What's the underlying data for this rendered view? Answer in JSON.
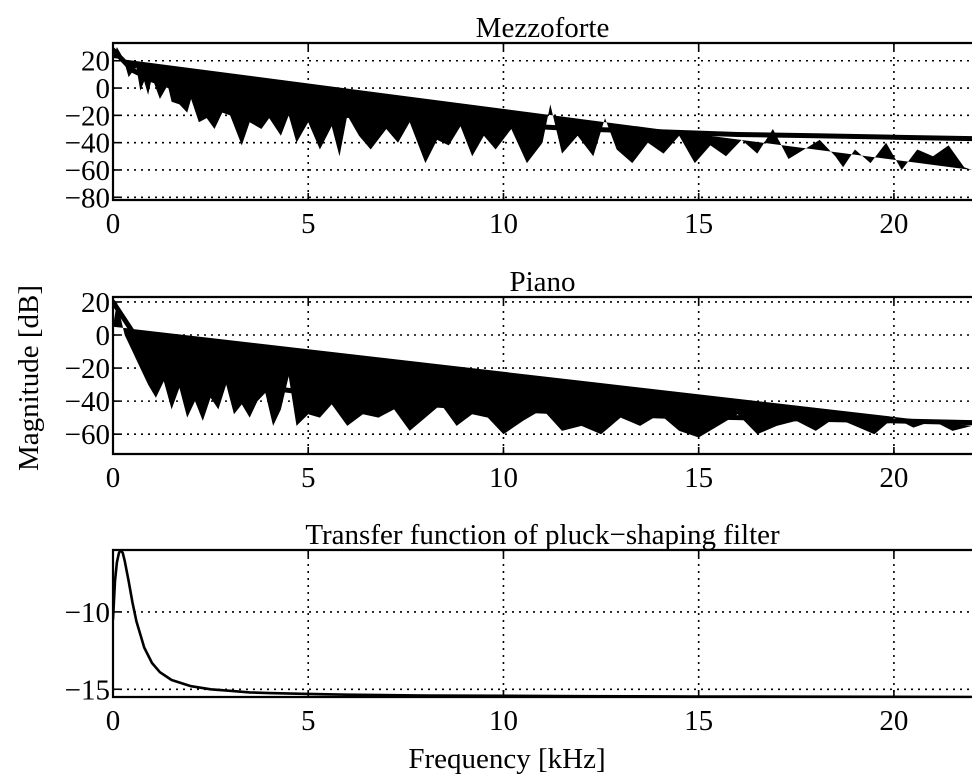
{
  "figure": {
    "ylabel": "Magnitude [dB]",
    "xlabel": "Frequency [kHz]"
  },
  "chart_data": [
    {
      "type": "line",
      "title": "Mezzoforte",
      "xlabel": "",
      "ylabel": "Magnitude [dB]",
      "xlim": [
        0,
        22
      ],
      "ylim": [
        -82,
        33
      ],
      "xticks": [
        0,
        5,
        10,
        15,
        20
      ],
      "yticks": [
        20,
        0,
        -20,
        -40,
        -60,
        -80
      ],
      "grid": true,
      "series": [
        {
          "role": "spectrum",
          "x": [
            0.0,
            0.1,
            0.2,
            0.3,
            0.4,
            0.5,
            0.6,
            0.7,
            0.8,
            0.9,
            1.0,
            1.1,
            1.2,
            1.3,
            1.4,
            1.5,
            1.7,
            1.9,
            2.0,
            2.2,
            2.4,
            2.6,
            2.8,
            3.0,
            3.3,
            3.5,
            3.8,
            4.0,
            4.3,
            4.5,
            4.7,
            5.0,
            5.3,
            5.6,
            5.8,
            6.0,
            6.3,
            6.6,
            7.0,
            7.3,
            7.6,
            8.0,
            8.3,
            8.6,
            8.9,
            9.2,
            9.5,
            9.8,
            10.2,
            10.6,
            11.0,
            11.2,
            11.5,
            11.9,
            12.3,
            12.6,
            12.9,
            13.3,
            13.7,
            14.1,
            14.5,
            14.9,
            15.3,
            15.7,
            16.1,
            16.5,
            16.9,
            17.3,
            17.7,
            18.1,
            18.5,
            18.7,
            19.0,
            19.4,
            19.8,
            20.2,
            20.6,
            21.0,
            21.4,
            21.8,
            22.0
          ],
          "y": [
            22,
            30,
            25,
            18,
            8,
            12,
            15,
            -2,
            5,
            -5,
            8,
            0,
            -8,
            -3,
            2,
            -10,
            -12,
            -18,
            -8,
            -25,
            -22,
            -30,
            -18,
            -20,
            -42,
            -25,
            -30,
            -22,
            -35,
            -20,
            -40,
            -25,
            -45,
            -28,
            -50,
            -20,
            -35,
            -45,
            -30,
            -40,
            -25,
            -55,
            -38,
            -42,
            -28,
            -50,
            -35,
            -45,
            -30,
            -55,
            -40,
            -12,
            -48,
            -35,
            -50,
            -22,
            -45,
            -55,
            -40,
            -48,
            -35,
            -55,
            -42,
            -50,
            -38,
            -48,
            -30,
            -52,
            -45,
            -38,
            -50,
            -58,
            -45,
            -55,
            -40,
            -60,
            -45,
            -50,
            -42,
            -58,
            -60
          ]
        },
        {
          "role": "envelope",
          "x": [
            0.0,
            0.5,
            1.0,
            1.5,
            2.0,
            3.0,
            4.0,
            5.0,
            6.0,
            7.0,
            8.0,
            10.0,
            12.0,
            14.0,
            16.0,
            18.0,
            20.0,
            22.0
          ],
          "y": [
            28,
            13,
            6,
            1,
            -3,
            -9,
            -14,
            -17,
            -20,
            -22,
            -24,
            -27,
            -30,
            -32,
            -34,
            -35,
            -36,
            -37
          ]
        }
      ]
    },
    {
      "type": "line",
      "title": "Piano",
      "xlabel": "",
      "ylabel": "Magnitude [dB]",
      "xlim": [
        0,
        22
      ],
      "ylim": [
        -72,
        23
      ],
      "xticks": [
        0,
        5,
        10,
        15,
        20
      ],
      "yticks": [
        20,
        0,
        -20,
        -40,
        -60
      ],
      "grid": true,
      "series": [
        {
          "role": "spectrum",
          "x": [
            0.0,
            0.1,
            0.2,
            0.3,
            0.4,
            0.5,
            0.7,
            0.9,
            1.1,
            1.3,
            1.5,
            1.7,
            1.9,
            2.1,
            2.3,
            2.5,
            2.7,
            2.9,
            3.1,
            3.3,
            3.5,
            3.7,
            3.9,
            4.1,
            4.3,
            4.5,
            4.7,
            5.0,
            5.3,
            5.6,
            6.0,
            6.4,
            6.8,
            7.2,
            7.6,
            8.0,
            8.4,
            8.8,
            9.2,
            9.6,
            10.0,
            10.5,
            11.0,
            11.5,
            12.0,
            12.5,
            13.0,
            13.5,
            14.0,
            14.5,
            15.0,
            15.5,
            16.0,
            16.5,
            17.0,
            17.5,
            18.0,
            18.5,
            19.0,
            19.5,
            20.0,
            20.5,
            21.0,
            21.5,
            22.0
          ],
          "y": [
            5,
            20,
            10,
            0,
            -5,
            -10,
            -20,
            -30,
            -38,
            -28,
            -45,
            -32,
            -50,
            -40,
            -52,
            -38,
            -45,
            -30,
            -48,
            -42,
            -50,
            -40,
            -35,
            -55,
            -45,
            -25,
            -55,
            -48,
            -50,
            -42,
            -55,
            -48,
            -50,
            -45,
            -58,
            -50,
            -42,
            -55,
            -48,
            -50,
            -60,
            -52,
            -45,
            -58,
            -55,
            -60,
            -50,
            -55,
            -48,
            -58,
            -62,
            -55,
            -48,
            -60,
            -55,
            -52,
            -58,
            -50,
            -55,
            -60,
            -50,
            -56,
            -52,
            -58,
            -55
          ]
        },
        {
          "role": "envelope",
          "x": [
            0.0,
            0.5,
            1.0,
            1.5,
            2.0,
            3.0,
            4.0,
            5.0,
            6.0,
            8.0,
            10.0,
            12.0,
            14.0,
            16.0,
            18.0,
            20.0,
            22.0
          ],
          "y": [
            20,
            2,
            -9,
            -15,
            -20,
            -27,
            -32,
            -35,
            -38,
            -42,
            -45,
            -47,
            -49,
            -50,
            -51,
            -52,
            -53
          ]
        }
      ]
    },
    {
      "type": "line",
      "title": "Transfer function of pluck−shaping filter",
      "xlabel": "Frequency [kHz]",
      "ylabel": "",
      "xlim": [
        0,
        22
      ],
      "ylim": [
        -15.5,
        -6
      ],
      "xticks": [
        0,
        5,
        10,
        15,
        20
      ],
      "yticks": [
        -10,
        -15
      ],
      "grid": true,
      "series": [
        {
          "role": "filter",
          "x": [
            0.0,
            0.05,
            0.1,
            0.15,
            0.2,
            0.25,
            0.3,
            0.4,
            0.5,
            0.6,
            0.8,
            1.0,
            1.2,
            1.5,
            2.0,
            2.5,
            3.0,
            3.5,
            4.0,
            5.0,
            6.0,
            8.0,
            10.0,
            12.0,
            15.0,
            18.0,
            20.0,
            22.0
          ],
          "y": [
            -10.5,
            -8.0,
            -6.8,
            -6.2,
            -6.0,
            -6.2,
            -6.7,
            -8.0,
            -9.4,
            -10.6,
            -12.3,
            -13.3,
            -13.9,
            -14.4,
            -14.8,
            -15.0,
            -15.1,
            -15.2,
            -15.25,
            -15.3,
            -15.35,
            -15.4,
            -15.42,
            -15.45,
            -15.47,
            -15.48,
            -15.49,
            -15.5
          ]
        }
      ]
    }
  ]
}
